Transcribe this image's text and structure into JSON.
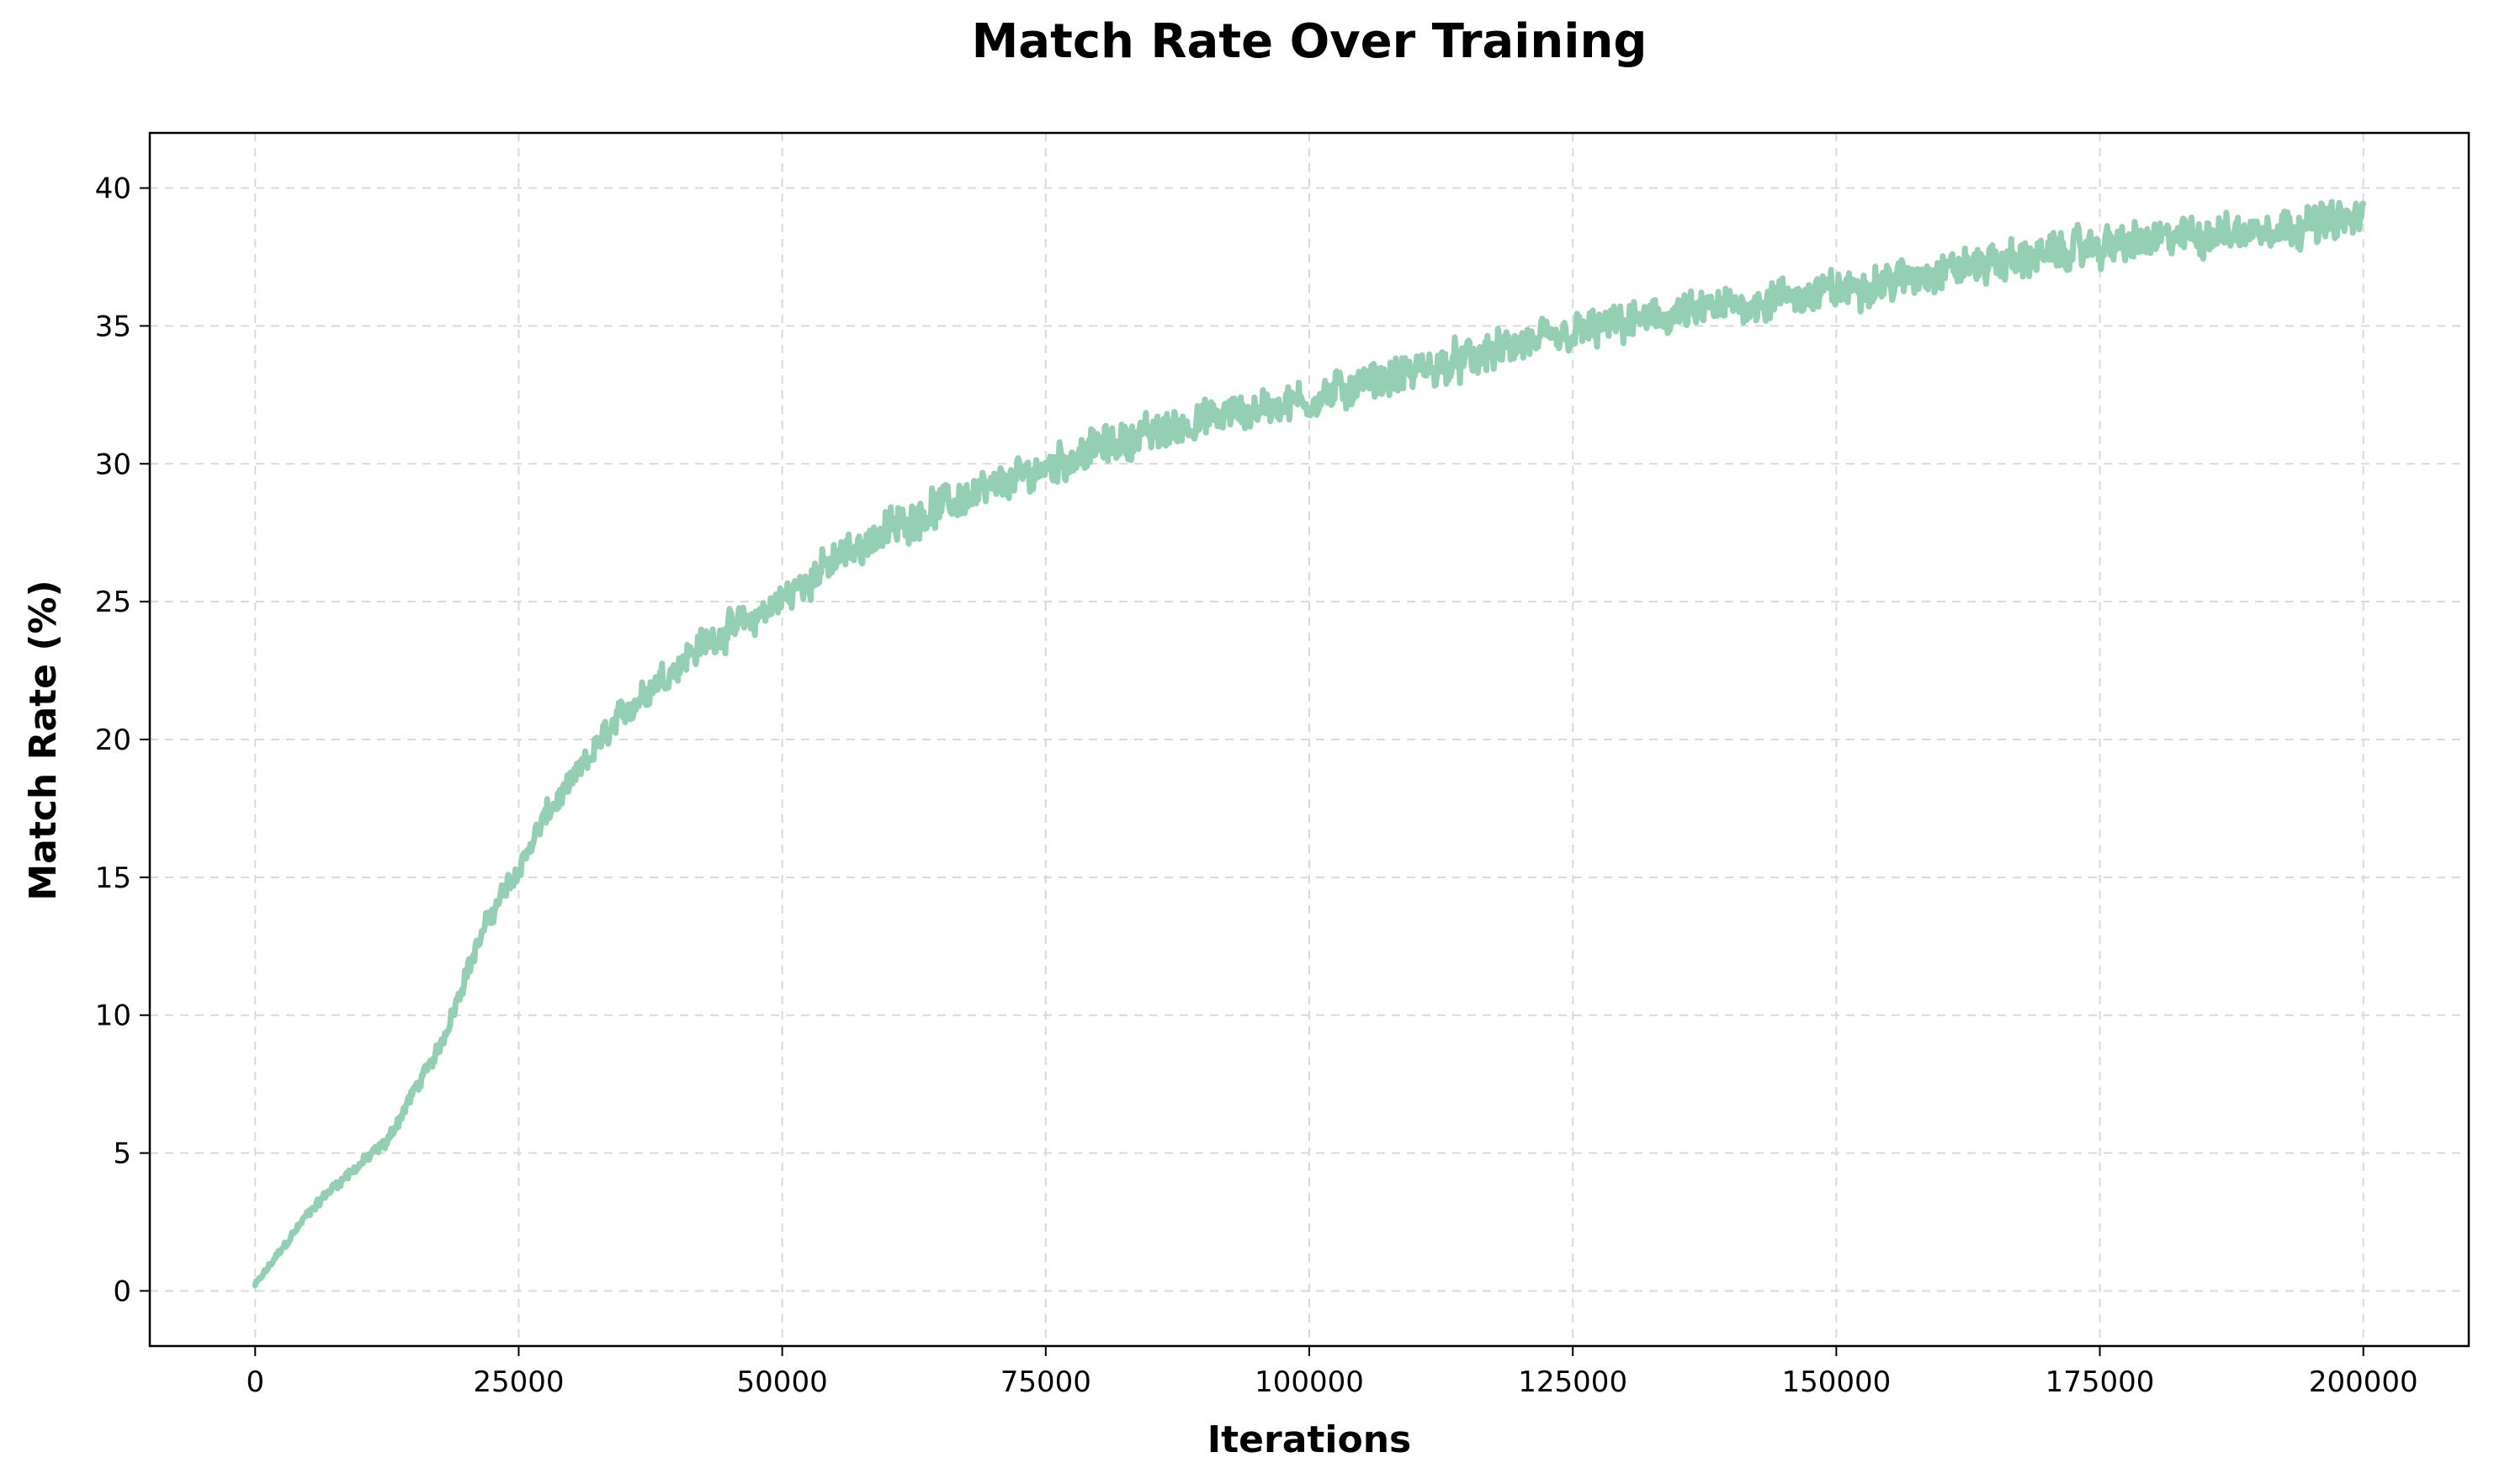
{
  "chart_data": {
    "type": "line",
    "title": "Match Rate Over Training",
    "xlabel": "Iterations",
    "ylabel": "Match Rate (%)",
    "xlim": [
      -10000,
      210000
    ],
    "ylim": [
      -2,
      42
    ],
    "xticks": [
      0,
      25000,
      50000,
      75000,
      100000,
      125000,
      150000,
      175000,
      200000
    ],
    "yticks": [
      0,
      5,
      10,
      15,
      20,
      25,
      30,
      35,
      40
    ],
    "grid": true,
    "legend": "none",
    "series": [
      {
        "color": "#94cfb3",
        "noise": "high-frequency jitter of roughly ±1 percentage point around the trend",
        "x": [
          0,
          2500,
          5000,
          7500,
          10000,
          12500,
          15000,
          17500,
          20000,
          22500,
          25000,
          27500,
          30000,
          32500,
          35000,
          37500,
          40000,
          42500,
          45000,
          47500,
          50000,
          55000,
          60000,
          65000,
          70000,
          75000,
          80000,
          85000,
          90000,
          95000,
          100000,
          105000,
          110000,
          115000,
          120000,
          125000,
          130000,
          135000,
          140000,
          145000,
          150000,
          155000,
          160000,
          165000,
          170000,
          175000,
          180000,
          185000,
          190000,
          195000,
          200000
        ],
        "y": [
          0.2,
          1.5,
          2.8,
          3.8,
          4.6,
          5.4,
          7.2,
          8.8,
          11.5,
          13.8,
          15.3,
          17.2,
          18.4,
          19.8,
          21.0,
          21.9,
          22.7,
          23.5,
          24.0,
          24.4,
          25.1,
          26.5,
          27.6,
          28.5,
          29.1,
          29.9,
          30.6,
          31.1,
          31.6,
          32.0,
          32.3,
          32.9,
          33.3,
          33.8,
          34.3,
          34.7,
          35.1,
          35.4,
          35.7,
          36.0,
          36.3,
          36.6,
          37.0,
          37.3,
          37.6,
          37.9,
          38.1,
          38.3,
          38.5,
          38.7,
          38.9
        ]
      }
    ]
  }
}
